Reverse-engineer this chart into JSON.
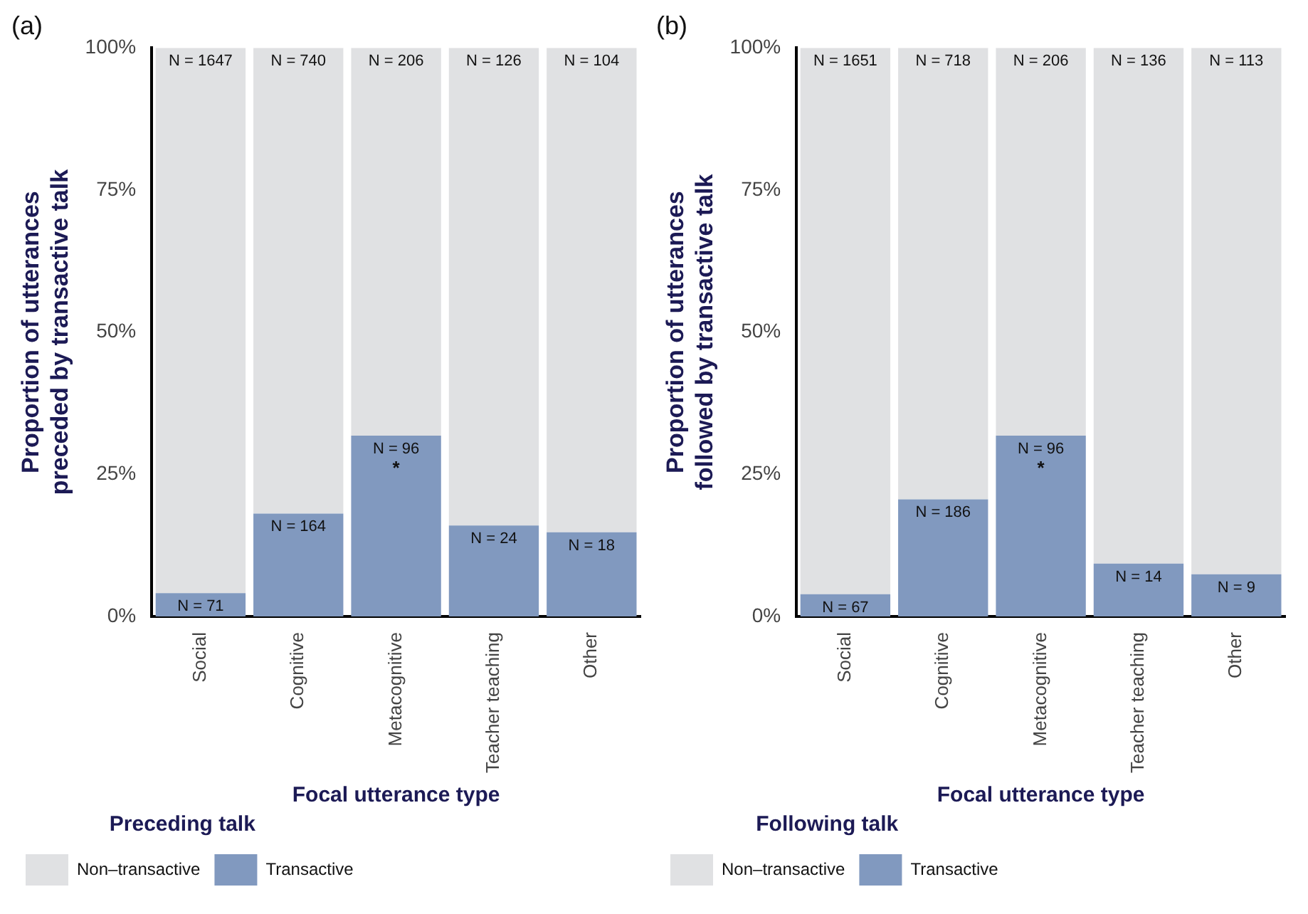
{
  "chart_data": [
    {
      "type": "bar",
      "title": "(a)",
      "ylabel": "Proportion of utterances preceded by transactive talk",
      "xlabel": "Focal utterance type",
      "legend_title": "Preceding talk",
      "legend": "bottom left",
      "stacked": true,
      "grid": false,
      "categories": [
        "Social",
        "Cognitive",
        "Metacognitive",
        "Teacher teaching",
        "Other"
      ],
      "series": [
        {
          "name": "Transactive",
          "color": "#8199bf",
          "values": [
            4.1,
            18.1,
            31.8,
            16.0,
            14.8
          ]
        },
        {
          "name": "Non–transactive",
          "color": "#e0e1e3",
          "values": [
            95.9,
            81.9,
            68.2,
            84.0,
            85.2
          ]
        }
      ],
      "ylim": [
        0,
        100
      ],
      "yticks": [
        {
          "value": 0,
          "label": "0%"
        },
        {
          "value": 25,
          "label": "25%"
        },
        {
          "value": 50,
          "label": "50%"
        },
        {
          "value": 75,
          "label": "75%"
        },
        {
          "value": 100,
          "label": "100%"
        }
      ],
      "annotations": [
        {
          "text": "N = 71",
          "x": "Social",
          "y": 4.1
        },
        {
          "text": "N = 164",
          "x": "Cognitive",
          "y": 18.1
        },
        {
          "text": "N = 96",
          "x": "Metacognitive",
          "y": 31.8
        },
        {
          "text": "*",
          "x": "Metacognitive",
          "y": 31.8
        },
        {
          "text": "N = 24",
          "x": "Teacher teaching",
          "y": 16.0
        },
        {
          "text": "N = 18",
          "x": "Other",
          "y": 14.8
        },
        {
          "text": "N = 1647",
          "x": "Social",
          "y": 100
        },
        {
          "text": "N = 740",
          "x": "Cognitive",
          "y": 100
        },
        {
          "text": "N = 206",
          "x": "Metacognitive",
          "y": 100
        },
        {
          "text": "N = 126",
          "x": "Teacher teaching",
          "y": 100
        },
        {
          "text": "N = 104",
          "x": "Other",
          "y": 100
        }
      ]
    },
    {
      "type": "bar",
      "title": "(b)",
      "ylabel": "Proportion of utterances followed by transactive talk",
      "xlabel": "Focal utterance type",
      "legend_title": "Following talk",
      "legend": "bottom left",
      "stacked": true,
      "grid": false,
      "categories": [
        "Social",
        "Cognitive",
        "Metacognitive",
        "Teacher teaching",
        "Other"
      ],
      "series": [
        {
          "name": "Transactive",
          "color": "#8199bf",
          "values": [
            3.9,
            20.6,
            31.8,
            9.3,
            7.4
          ]
        },
        {
          "name": "Non–transactive",
          "color": "#e0e1e3",
          "values": [
            96.1,
            79.4,
            68.2,
            90.7,
            92.6
          ]
        }
      ],
      "ylim": [
        0,
        100
      ],
      "yticks": [
        {
          "value": 0,
          "label": "0%"
        },
        {
          "value": 25,
          "label": "25%"
        },
        {
          "value": 50,
          "label": "50%"
        },
        {
          "value": 75,
          "label": "75%"
        },
        {
          "value": 100,
          "label": "100%"
        }
      ],
      "annotations": [
        {
          "text": "N = 67",
          "x": "Social",
          "y": 3.9
        },
        {
          "text": "N = 186",
          "x": "Cognitive",
          "y": 20.6
        },
        {
          "text": "N = 96",
          "x": "Metacognitive",
          "y": 31.8
        },
        {
          "text": "*",
          "x": "Metacognitive",
          "y": 31.8
        },
        {
          "text": "N = 14",
          "x": "Teacher teaching",
          "y": 9.3
        },
        {
          "text": "N = 9",
          "x": "Other",
          "y": 7.4
        },
        {
          "text": "N = 1651",
          "x": "Social",
          "y": 100
        },
        {
          "text": "N = 718",
          "x": "Cognitive",
          "y": 100
        },
        {
          "text": "N = 206",
          "x": "Metacognitive",
          "y": 100
        },
        {
          "text": "N = 136",
          "x": "Teacher teaching",
          "y": 100
        },
        {
          "text": "N = 113",
          "x": "Other",
          "y": 100
        }
      ]
    }
  ]
}
